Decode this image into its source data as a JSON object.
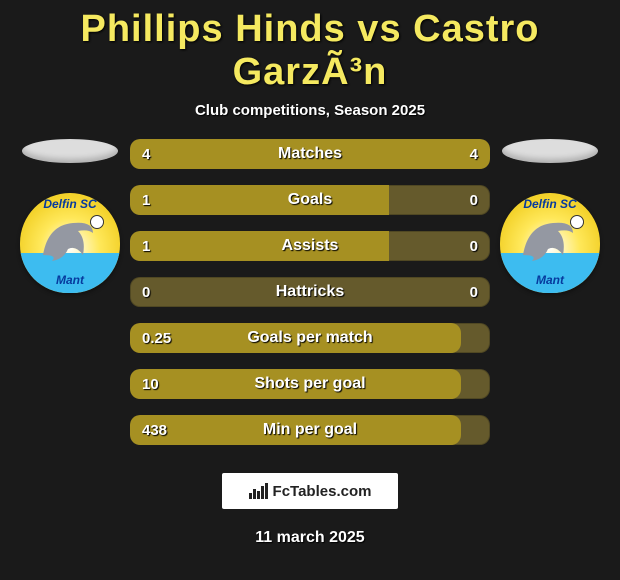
{
  "colors": {
    "page_bg": "#1a1a1a",
    "title_color": "#f5e960",
    "text_color": "#ffffff",
    "bar_bg": "#655a2c",
    "bar_fill": "#a69022"
  },
  "title": "Phillips Hinds vs Castro GarzÃ³n",
  "subtitle": "Club competitions, Season 2025",
  "left_badge": {
    "top_text": "Delfin SC",
    "bottom_text": "Mant"
  },
  "right_badge": {
    "top_text": "Delfin SC",
    "bottom_text": "Mant"
  },
  "stats": [
    {
      "label": "Matches",
      "left_val": "4",
      "right_val": "4",
      "left_pct": 50,
      "right_pct": 50
    },
    {
      "label": "Goals",
      "left_val": "1",
      "right_val": "0",
      "left_pct": 72,
      "right_pct": 0
    },
    {
      "label": "Assists",
      "left_val": "1",
      "right_val": "0",
      "left_pct": 72,
      "right_pct": 0
    },
    {
      "label": "Hattricks",
      "left_val": "0",
      "right_val": "0",
      "left_pct": 0,
      "right_pct": 0
    },
    {
      "label": "Goals per match",
      "left_val": "0.25",
      "right_val": "",
      "left_pct": 92,
      "right_pct": 0
    },
    {
      "label": "Shots per goal",
      "left_val": "10",
      "right_val": "",
      "left_pct": 92,
      "right_pct": 0
    },
    {
      "label": "Min per goal",
      "left_val": "438",
      "right_val": "",
      "left_pct": 92,
      "right_pct": 0
    }
  ],
  "footer_logo_text": "FcTables.com",
  "date": "11 march 2025"
}
